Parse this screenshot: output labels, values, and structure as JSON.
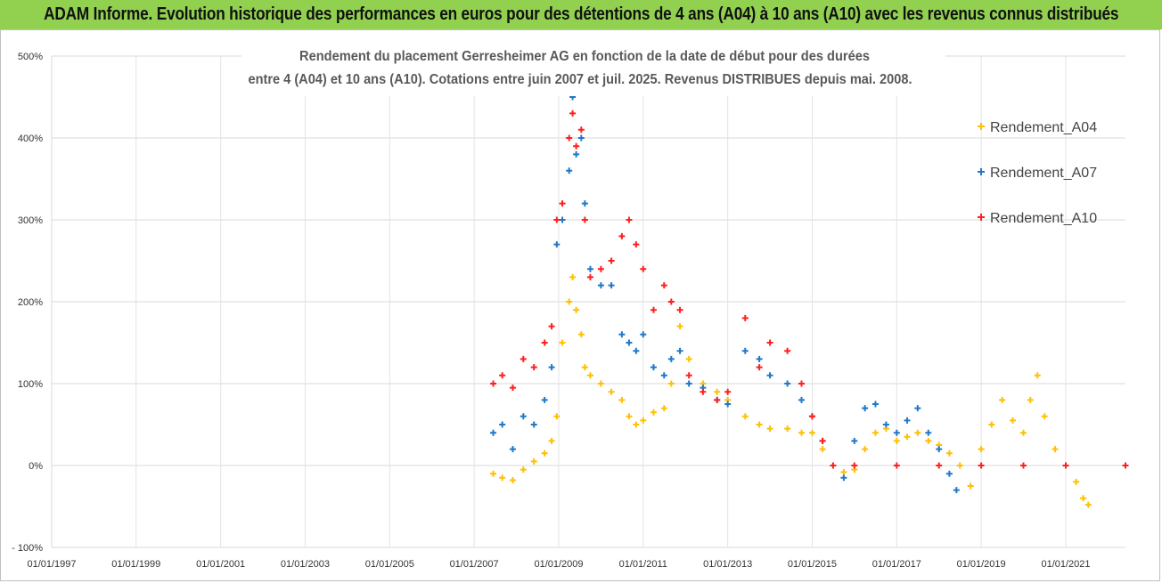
{
  "header": {
    "banner": "ADAM Informe. Evolution historique des performances en euros pour des détentions de 4 ans (A04) à 10 ans (A10) avec les revenus connus distribués"
  },
  "chart_data": {
    "type": "scatter",
    "title_lines": [
      "Rendement du placement Gerresheimer AG en fonction de la date de début pour des durées",
      "entre 4 (A04)  et 10 ans (A10). Cotations entre juin 2007 et juil. 2025. Revenus DISTRIBUES depuis mai. 2008."
    ],
    "xlabel": "",
    "ylabel": "",
    "x_ticks": [
      "01/01/1997",
      "01/01/1999",
      "01/01/2001",
      "01/01/2003",
      "01/01/2005",
      "01/01/2007",
      "01/01/2009",
      "01/01/2011",
      "01/01/2013",
      "01/01/2015",
      "01/01/2017",
      "01/01/2019",
      "01/01/2021"
    ],
    "xlim": [
      "1997-01-01",
      "2022-06-01"
    ],
    "y_ticks": [
      "- 100%",
      "0%",
      "100%",
      "200%",
      "300%",
      "400%",
      "500%"
    ],
    "ylim": [
      -100,
      500
    ],
    "y_unit": "%",
    "legend_position": "right",
    "grid": true,
    "series": [
      {
        "name": "Rendement_A04",
        "color": "#ffc000",
        "marker": "+",
        "points": [
          [
            "2007-06-15",
            -10
          ],
          [
            "2007-09-01",
            -15
          ],
          [
            "2007-12-01",
            -18
          ],
          [
            "2008-03-01",
            -5
          ],
          [
            "2008-06-01",
            5
          ],
          [
            "2008-09-01",
            15
          ],
          [
            "2008-11-01",
            30
          ],
          [
            "2008-12-15",
            60
          ],
          [
            "2009-02-01",
            150
          ],
          [
            "2009-04-01",
            200
          ],
          [
            "2009-05-01",
            230
          ],
          [
            "2009-06-01",
            190
          ],
          [
            "2009-07-15",
            160
          ],
          [
            "2009-08-15",
            120
          ],
          [
            "2009-10-01",
            110
          ],
          [
            "2010-01-01",
            100
          ],
          [
            "2010-04-01",
            90
          ],
          [
            "2010-07-01",
            80
          ],
          [
            "2010-09-01",
            60
          ],
          [
            "2010-11-01",
            50
          ],
          [
            "2011-01-01",
            55
          ],
          [
            "2011-04-01",
            65
          ],
          [
            "2011-07-01",
            70
          ],
          [
            "2011-09-01",
            100
          ],
          [
            "2011-11-15",
            170
          ],
          [
            "2012-02-01",
            130
          ],
          [
            "2012-06-01",
            100
          ],
          [
            "2012-10-01",
            90
          ],
          [
            "2013-01-01",
            80
          ],
          [
            "2013-06-01",
            60
          ],
          [
            "2013-10-01",
            50
          ],
          [
            "2014-01-01",
            45
          ],
          [
            "2014-06-01",
            45
          ],
          [
            "2014-10-01",
            40
          ],
          [
            "2015-01-01",
            40
          ],
          [
            "2015-04-01",
            20
          ],
          [
            "2015-07-01",
            0
          ],
          [
            "2015-10-01",
            -8
          ],
          [
            "2016-01-01",
            -5
          ],
          [
            "2016-04-01",
            20
          ],
          [
            "2016-07-01",
            40
          ],
          [
            "2016-10-01",
            45
          ],
          [
            "2017-01-01",
            30
          ],
          [
            "2017-04-01",
            35
          ],
          [
            "2017-07-01",
            40
          ],
          [
            "2017-10-01",
            30
          ],
          [
            "2018-01-01",
            25
          ],
          [
            "2018-04-01",
            15
          ],
          [
            "2018-07-01",
            0
          ],
          [
            "2018-10-01",
            -25
          ],
          [
            "2019-01-01",
            20
          ],
          [
            "2019-04-01",
            50
          ],
          [
            "2019-07-01",
            80
          ],
          [
            "2019-10-01",
            55
          ],
          [
            "2020-01-01",
            40
          ],
          [
            "2020-03-01",
            80
          ],
          [
            "2020-05-01",
            110
          ],
          [
            "2020-07-01",
            60
          ],
          [
            "2020-10-01",
            20
          ],
          [
            "2021-01-01",
            0
          ],
          [
            "2021-04-01",
            -20
          ],
          [
            "2021-06-01",
            -40
          ],
          [
            "2021-07-15",
            -48
          ]
        ]
      },
      {
        "name": "Rendement_A07",
        "color": "#1f78c8",
        "marker": "+",
        "points": [
          [
            "2007-06-15",
            40
          ],
          [
            "2007-09-01",
            50
          ],
          [
            "2007-12-01",
            20
          ],
          [
            "2008-03-01",
            60
          ],
          [
            "2008-06-01",
            50
          ],
          [
            "2008-09-01",
            80
          ],
          [
            "2008-11-01",
            120
          ],
          [
            "2008-12-15",
            270
          ],
          [
            "2009-02-01",
            300
          ],
          [
            "2009-04-01",
            360
          ],
          [
            "2009-05-01",
            450
          ],
          [
            "2009-06-01",
            380
          ],
          [
            "2009-07-15",
            400
          ],
          [
            "2009-08-15",
            320
          ],
          [
            "2009-10-01",
            240
          ],
          [
            "2010-01-01",
            220
          ],
          [
            "2010-04-01",
            220
          ],
          [
            "2010-07-01",
            160
          ],
          [
            "2010-09-01",
            150
          ],
          [
            "2010-11-01",
            140
          ],
          [
            "2011-01-01",
            160
          ],
          [
            "2011-04-01",
            120
          ],
          [
            "2011-07-01",
            110
          ],
          [
            "2011-09-01",
            130
          ],
          [
            "2011-11-15",
            140
          ],
          [
            "2012-02-01",
            100
          ],
          [
            "2012-06-01",
            95
          ],
          [
            "2012-10-01",
            80
          ],
          [
            "2013-01-01",
            75
          ],
          [
            "2013-06-01",
            140
          ],
          [
            "2013-10-01",
            130
          ],
          [
            "2014-01-01",
            110
          ],
          [
            "2014-06-01",
            100
          ],
          [
            "2014-10-01",
            80
          ],
          [
            "2015-01-01",
            60
          ],
          [
            "2015-04-01",
            30
          ],
          [
            "2015-07-01",
            0
          ],
          [
            "2015-10-01",
            -15
          ],
          [
            "2016-01-01",
            30
          ],
          [
            "2016-04-01",
            70
          ],
          [
            "2016-07-01",
            75
          ],
          [
            "2016-10-01",
            50
          ],
          [
            "2017-01-01",
            40
          ],
          [
            "2017-04-01",
            55
          ],
          [
            "2017-07-01",
            70
          ],
          [
            "2017-10-01",
            40
          ],
          [
            "2018-01-01",
            20
          ],
          [
            "2018-04-01",
            -10
          ],
          [
            "2018-06-01",
            -30
          ]
        ]
      },
      {
        "name": "Rendement_A10",
        "color": "#ff1f1f",
        "marker": "+",
        "points": [
          [
            "2007-06-15",
            100
          ],
          [
            "2007-09-01",
            110
          ],
          [
            "2007-12-01",
            95
          ],
          [
            "2008-03-01",
            130
          ],
          [
            "2008-06-01",
            120
          ],
          [
            "2008-09-01",
            150
          ],
          [
            "2008-11-01",
            170
          ],
          [
            "2008-12-15",
            300
          ],
          [
            "2009-02-01",
            320
          ],
          [
            "2009-04-01",
            400
          ],
          [
            "2009-05-01",
            430
          ],
          [
            "2009-06-01",
            390
          ],
          [
            "2009-07-15",
            410
          ],
          [
            "2009-08-15",
            300
          ],
          [
            "2009-10-01",
            230
          ],
          [
            "2010-01-01",
            240
          ],
          [
            "2010-04-01",
            250
          ],
          [
            "2010-07-01",
            280
          ],
          [
            "2010-09-01",
            300
          ],
          [
            "2010-11-01",
            270
          ],
          [
            "2011-01-01",
            240
          ],
          [
            "2011-04-01",
            190
          ],
          [
            "2011-07-01",
            220
          ],
          [
            "2011-09-01",
            200
          ],
          [
            "2011-11-15",
            190
          ],
          [
            "2012-02-01",
            110
          ],
          [
            "2012-06-01",
            90
          ],
          [
            "2012-10-01",
            80
          ],
          [
            "2013-01-01",
            90
          ],
          [
            "2013-06-01",
            180
          ],
          [
            "2013-10-01",
            120
          ],
          [
            "2014-01-01",
            150
          ],
          [
            "2014-06-01",
            140
          ],
          [
            "2014-10-01",
            100
          ],
          [
            "2015-01-01",
            60
          ],
          [
            "2015-04-01",
            30
          ],
          [
            "2015-07-01",
            0
          ],
          [
            "2016-01-01",
            0
          ],
          [
            "2017-01-01",
            0
          ],
          [
            "2018-01-01",
            0
          ],
          [
            "2019-01-01",
            0
          ],
          [
            "2020-01-01",
            0
          ],
          [
            "2021-01-01",
            0
          ],
          [
            "2022-06-01",
            0
          ]
        ]
      }
    ]
  }
}
